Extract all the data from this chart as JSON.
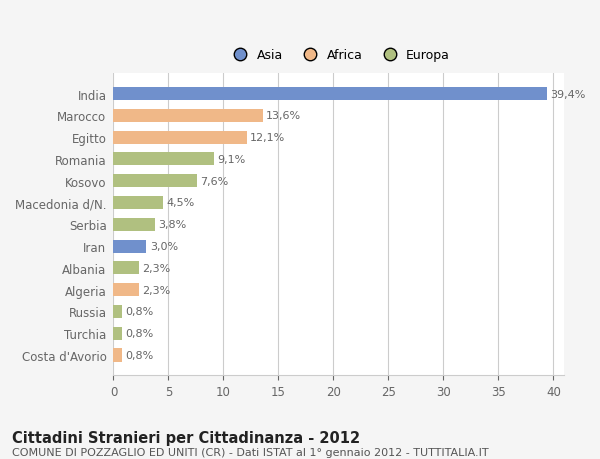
{
  "categories": [
    "India",
    "Marocco",
    "Egitto",
    "Romania",
    "Kosovo",
    "Macedonia d/N.",
    "Serbia",
    "Iran",
    "Albania",
    "Algeria",
    "Russia",
    "Turchia",
    "Costa d'Avorio"
  ],
  "values": [
    39.4,
    13.6,
    12.1,
    9.1,
    7.6,
    4.5,
    3.8,
    3.0,
    2.3,
    2.3,
    0.8,
    0.8,
    0.8
  ],
  "labels": [
    "39,4%",
    "13,6%",
    "12,1%",
    "9,1%",
    "7,6%",
    "4,5%",
    "3,8%",
    "3,0%",
    "2,3%",
    "2,3%",
    "0,8%",
    "0,8%",
    "0,8%"
  ],
  "colors": [
    "#7090cc",
    "#f0b888",
    "#f0b888",
    "#b0c080",
    "#b0c080",
    "#b0c080",
    "#b0c080",
    "#7090cc",
    "#b0c080",
    "#f0b888",
    "#b0c080",
    "#b0c080",
    "#f0b888"
  ],
  "legend_labels": [
    "Asia",
    "Africa",
    "Europa"
  ],
  "legend_colors": [
    "#7090cc",
    "#f0b888",
    "#b0c080"
  ],
  "title1": "Cittadini Stranieri per Cittadinanza - 2012",
  "title2": "COMUNE DI POZZAGLIO ED UNITI (CR) - Dati ISTAT al 1° gennaio 2012 - TUTTITALIA.IT",
  "xlim": [
    0,
    41
  ],
  "xticks": [
    0,
    5,
    10,
    15,
    20,
    25,
    30,
    35,
    40
  ],
  "background_color": "#f5f5f5",
  "plot_background_color": "#ffffff",
  "grid_color": "#cccccc",
  "bar_height": 0.6,
  "label_fontsize": 8.0,
  "tick_fontsize": 8.5,
  "title1_fontsize": 10.5,
  "title2_fontsize": 8.0
}
